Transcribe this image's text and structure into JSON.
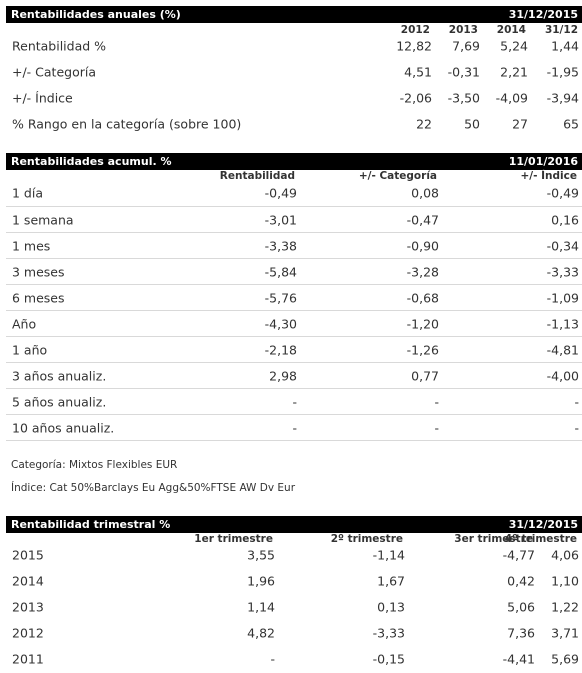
{
  "anual": {
    "title": "Rentabilidades anuales (%)",
    "date": "31/12/2015",
    "cols": [
      "2012",
      "2013",
      "2014",
      "31/12"
    ],
    "rows": [
      {
        "label": "Rentabilidad %",
        "v": [
          "12,82",
          "7,69",
          "5,24",
          "1,44"
        ]
      },
      {
        "label": "+/- Categoría",
        "v": [
          "4,51",
          "-0,31",
          "2,21",
          "-1,95"
        ]
      },
      {
        "label": "+/- Índice",
        "v": [
          "-2,06",
          "-3,50",
          "-4,09",
          "-3,94"
        ]
      },
      {
        "label": "% Rango en la categoría (sobre 100)",
        "v": [
          "22",
          "50",
          "27",
          "65"
        ]
      }
    ]
  },
  "acumul": {
    "title": "Rentabilidades acumul. %",
    "date": "11/01/2016",
    "cols": [
      "Rentabilidad",
      "+/- Categoría",
      "+/- Índice"
    ],
    "rows": [
      {
        "label": "1 día",
        "v": [
          "-0,49",
          "0,08",
          "-0,49"
        ]
      },
      {
        "label": "1 semana",
        "v": [
          "-3,01",
          "-0,47",
          "0,16"
        ]
      },
      {
        "label": "1 mes",
        "v": [
          "-3,38",
          "-0,90",
          "-0,34"
        ]
      },
      {
        "label": "3 meses",
        "v": [
          "-5,84",
          "-3,28",
          "-3,33"
        ]
      },
      {
        "label": "6 meses",
        "v": [
          "-5,76",
          "-0,68",
          "-1,09"
        ]
      },
      {
        "label": "Año",
        "v": [
          "-4,30",
          "-1,20",
          "-1,13"
        ]
      },
      {
        "label": "1 año",
        "v": [
          "-2,18",
          "-1,26",
          "-4,81"
        ]
      },
      {
        "label": "3 años anualiz.",
        "v": [
          "2,98",
          "0,77",
          "-4,00"
        ]
      },
      {
        "label": "5 años anualiz.",
        "v": [
          "-",
          "-",
          "-"
        ]
      },
      {
        "label": "10 años anualiz.",
        "v": [
          "-",
          "-",
          "-"
        ]
      }
    ]
  },
  "notes": {
    "categoria": "Categoría: Mixtos Flexibles EUR",
    "indice": "Índice: Cat 50%Barclays Eu Agg&50%FTSE AW Dv Eur"
  },
  "trimestral": {
    "title": "Rentabilidad trimestral %",
    "date": "31/12/2015",
    "cols": [
      "1er trimestre",
      "2º trimestre",
      "3er trimestre",
      "4º trimestre"
    ],
    "rows": [
      {
        "label": "2015",
        "v": [
          "3,55",
          "-1,14",
          "-4,77",
          "4,06"
        ]
      },
      {
        "label": "2014",
        "v": [
          "1,96",
          "1,67",
          "0,42",
          "1,10"
        ]
      },
      {
        "label": "2013",
        "v": [
          "1,14",
          "0,13",
          "5,06",
          "1,22"
        ]
      },
      {
        "label": "2012",
        "v": [
          "4,82",
          "-3,33",
          "7,36",
          "3,71"
        ]
      },
      {
        "label": "2011",
        "v": [
          "-",
          "-0,15",
          "-4,41",
          "5,69"
        ]
      }
    ]
  }
}
